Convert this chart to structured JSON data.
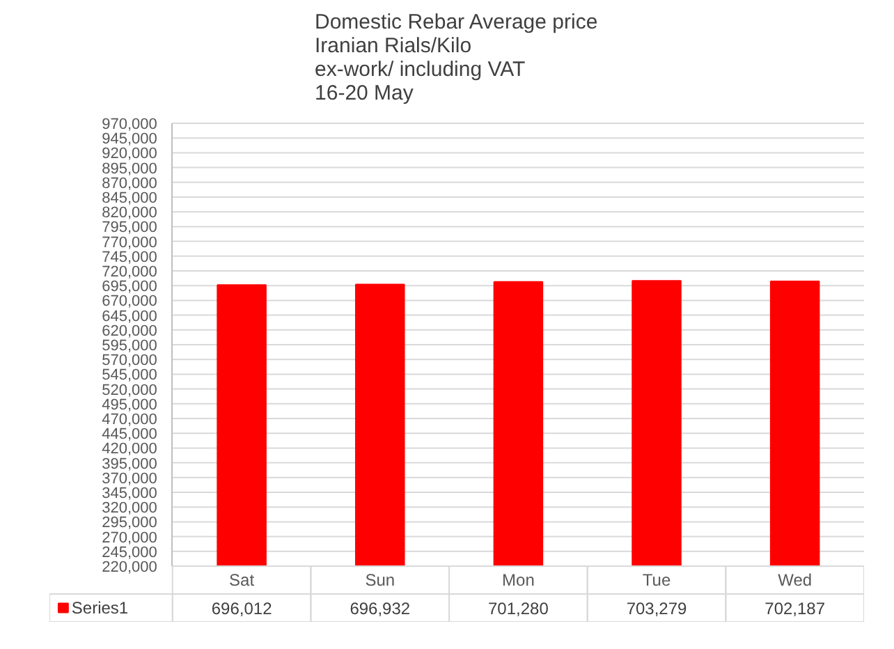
{
  "chart_data": {
    "type": "bar",
    "title": "Domestic Rebar Average price\nIranian Rials/Kilo\nex-work/ including VAT\n16-20 May",
    "categories": [
      "Sat",
      "Sun",
      "Mon",
      "Tue",
      "Wed"
    ],
    "series": [
      {
        "name": "Series1",
        "color": "#ff0000",
        "values": [
          696012,
          696932,
          701280,
          703279,
          702187
        ],
        "value_labels": [
          "696,012",
          "696,932",
          "701,280",
          "703,279",
          "702,187"
        ]
      }
    ],
    "ylim": [
      220000,
      970000
    ],
    "yticks": [
      {
        "value": 220000,
        "label": "220,000"
      },
      {
        "value": 245000,
        "label": "245,000"
      },
      {
        "value": 270000,
        "label": "270,000"
      },
      {
        "value": 295000,
        "label": "295,000"
      },
      {
        "value": 320000,
        "label": "320,000"
      },
      {
        "value": 345000,
        "label": "345,000"
      },
      {
        "value": 370000,
        "label": "370,000"
      },
      {
        "value": 395000,
        "label": "395,000"
      },
      {
        "value": 420000,
        "label": "420,000"
      },
      {
        "value": 445000,
        "label": "445,000"
      },
      {
        "value": 470000,
        "label": "470,000"
      },
      {
        "value": 495000,
        "label": "495,000"
      },
      {
        "value": 520000,
        "label": "520,000"
      },
      {
        "value": 545000,
        "label": "545,000"
      },
      {
        "value": 570000,
        "label": "570,000"
      },
      {
        "value": 595000,
        "label": "595,000"
      },
      {
        "value": 620000,
        "label": "620,000"
      },
      {
        "value": 645000,
        "label": "645,000"
      },
      {
        "value": 670000,
        "label": "670,000"
      },
      {
        "value": 695000,
        "label": "695,000"
      },
      {
        "value": 720000,
        "label": "720,000"
      },
      {
        "value": 745000,
        "label": "745,000"
      },
      {
        "value": 770000,
        "label": "770,000"
      },
      {
        "value": 795000,
        "label": "795,000"
      },
      {
        "value": 820000,
        "label": "820,000"
      },
      {
        "value": 845000,
        "label": "845,000"
      },
      {
        "value": 870000,
        "label": "870,000"
      },
      {
        "value": 895000,
        "label": "895,000"
      },
      {
        "value": 920000,
        "label": "920,000"
      },
      {
        "value": 945000,
        "label": "945,000"
      },
      {
        "value": 970000,
        "label": "970,000"
      }
    ],
    "grid": "y",
    "legend": "bottom"
  }
}
